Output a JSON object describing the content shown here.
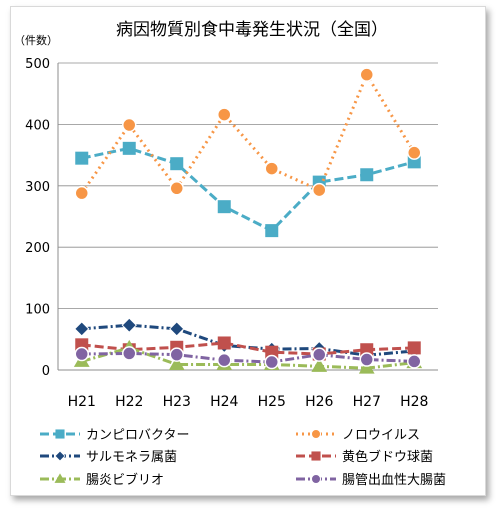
{
  "chart_data": {
    "type": "line",
    "title": "病因物質別食中毒発生状況（全国）",
    "ylabel": "（件数）",
    "xlabel": "",
    "ylim": [
      0,
      500
    ],
    "yticks": [
      0,
      100,
      200,
      300,
      400,
      500
    ],
    "categories": [
      "H21",
      "H22",
      "H23",
      "H24",
      "H25",
      "H26",
      "H27",
      "H28"
    ],
    "grid": "horizontal",
    "legend_position": "bottom",
    "series": [
      {
        "name": "カンピロバクター",
        "color": "#4bacc6",
        "marker": "square",
        "dash": "dash",
        "values": [
          345,
          361,
          336,
          266,
          227,
          306,
          318,
          339
        ]
      },
      {
        "name": "ノロウイルス",
        "color": "#f79646",
        "marker": "circle",
        "dash": "dot",
        "values": [
          288,
          399,
          296,
          416,
          328,
          293,
          481,
          354
        ]
      },
      {
        "name": "サルモネラ属菌",
        "color": "#1f497d",
        "marker": "diamond",
        "dash": "dashdot",
        "values": [
          67,
          73,
          67,
          40,
          34,
          35,
          24,
          31
        ]
      },
      {
        "name": "黄色ブドウ球菌",
        "color": "#c0504d",
        "marker": "square",
        "dash": "dash",
        "values": [
          41,
          33,
          37,
          44,
          29,
          26,
          33,
          36
        ]
      },
      {
        "name": "腸炎ビブリオ",
        "color": "#9bbb59",
        "marker": "triangle",
        "dash": "dashdot",
        "values": [
          14,
          36,
          9,
          9,
          9,
          6,
          3,
          12
        ]
      },
      {
        "name": "腸管出血性大腸菌",
        "color": "#8064a2",
        "marker": "circle",
        "dash": "dashdot",
        "values": [
          26,
          27,
          25,
          16,
          13,
          25,
          17,
          14
        ]
      }
    ]
  }
}
